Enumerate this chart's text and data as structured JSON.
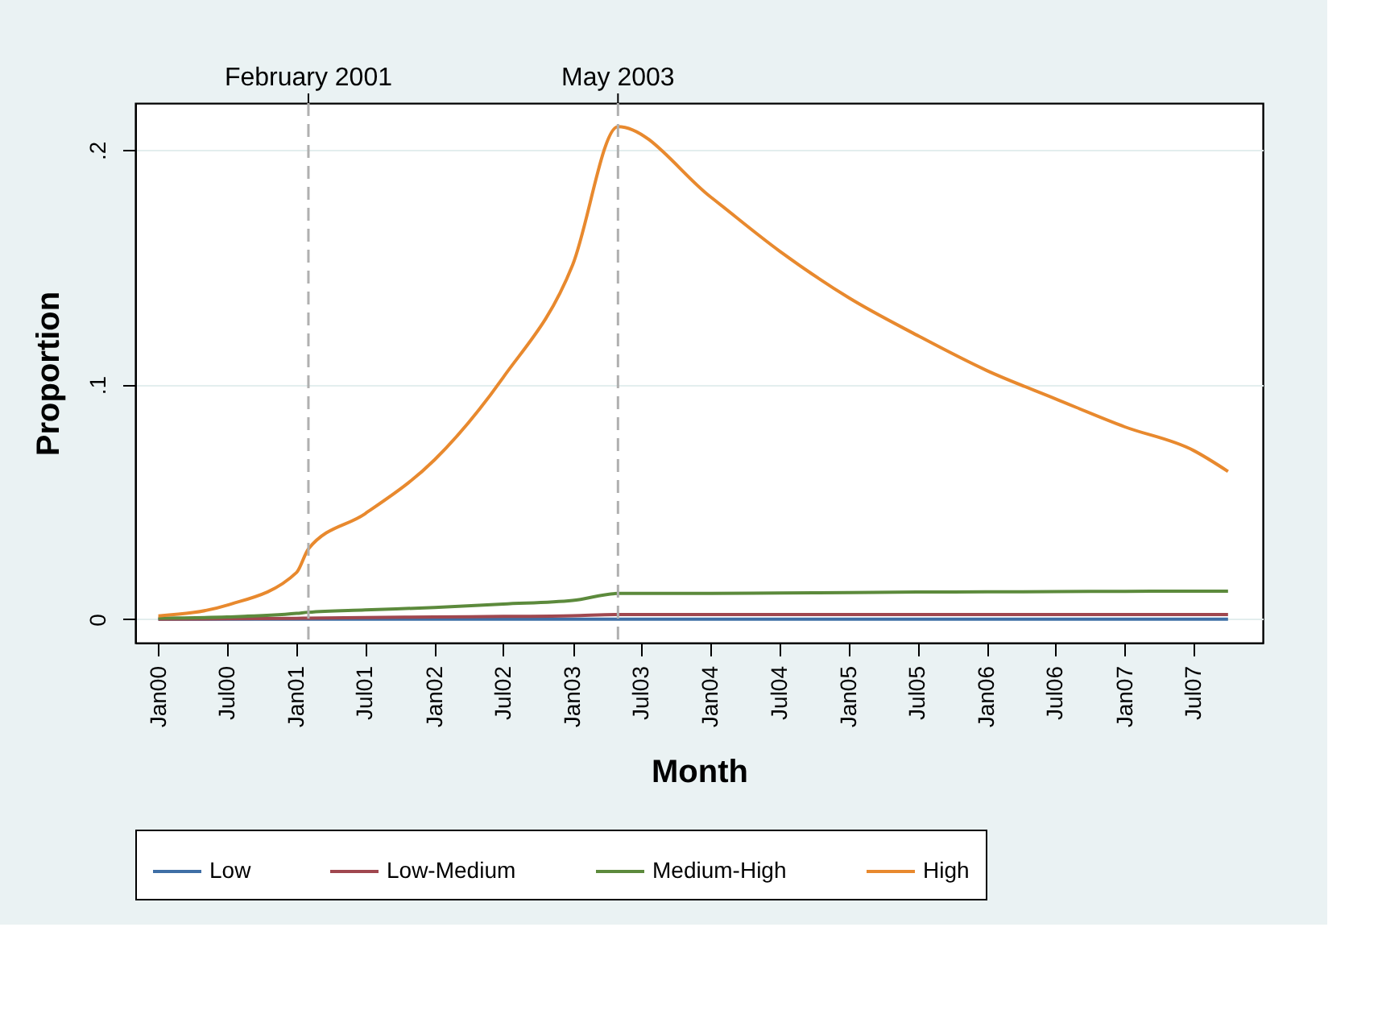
{
  "chart_data": {
    "type": "line",
    "xlabel": "Month",
    "ylabel": "Proportion",
    "xlim": [
      "1999-11",
      "2008-01"
    ],
    "ylim": [
      -0.01,
      0.22
    ],
    "xticks": [
      {
        "value": "2000-01",
        "label": "Jan00"
      },
      {
        "value": "2000-07",
        "label": "Jul00"
      },
      {
        "value": "2001-01",
        "label": "Jan01"
      },
      {
        "value": "2001-07",
        "label": "Jul01"
      },
      {
        "value": "2002-01",
        "label": "Jan02"
      },
      {
        "value": "2002-07",
        "label": "Jul02"
      },
      {
        "value": "2003-01",
        "label": "Jan03"
      },
      {
        "value": "2003-07",
        "label": "Jul03"
      },
      {
        "value": "2004-01",
        "label": "Jan04"
      },
      {
        "value": "2004-07",
        "label": "Jul04"
      },
      {
        "value": "2005-01",
        "label": "Jan05"
      },
      {
        "value": "2005-07",
        "label": "Jul05"
      },
      {
        "value": "2006-01",
        "label": "Jan06"
      },
      {
        "value": "2006-07",
        "label": "Jul06"
      },
      {
        "value": "2007-01",
        "label": "Jan07"
      },
      {
        "value": "2007-07",
        "label": "Jul07"
      }
    ],
    "yticks": [
      0,
      {
        "value": 0.1,
        "label": ".1"
      },
      {
        "value": 0.2,
        "label": ".2"
      }
    ],
    "grid": "y",
    "legend": "bottom",
    "ref_lines": [
      {
        "axis": "x",
        "value": "2001-02",
        "label": "February 2001",
        "color": "#b0b0b0",
        "line_style": "dashed"
      },
      {
        "axis": "x",
        "value": "2003-05",
        "label": "May 2003",
        "color": "#b0b0b0",
        "line_style": "dashed"
      }
    ],
    "x": [
      "2000-01",
      "2000-07",
      "2001-01",
      "2001-02",
      "2001-07",
      "2002-01",
      "2002-07",
      "2003-01",
      "2003-05",
      "2004-01",
      "2004-07",
      "2005-01",
      "2005-07",
      "2006-01",
      "2006-07",
      "2007-01",
      "2007-07",
      "2007-10"
    ],
    "series": [
      {
        "name": "Low",
        "color": "#3f6fa6",
        "values": [
          0,
          0,
          0,
          0,
          0,
          0,
          0,
          0,
          0,
          0,
          0,
          0,
          0,
          0,
          0,
          0,
          0,
          0
        ]
      },
      {
        "name": "Low-Medium",
        "color": "#a0474f",
        "values": [
          0,
          0.0002,
          0.0004,
          0.0005,
          0.0007,
          0.001,
          0.0012,
          0.0015,
          0.002,
          0.002,
          0.002,
          0.002,
          0.002,
          0.002,
          0.002,
          0.002,
          0.002,
          0.002
        ]
      },
      {
        "name": "Medium-High",
        "color": "#5c8a3c",
        "values": [
          0.0005,
          0.001,
          0.0025,
          0.003,
          0.004,
          0.005,
          0.0065,
          0.008,
          0.011,
          0.011,
          0.0112,
          0.0114,
          0.0116,
          0.0117,
          0.0118,
          0.0119,
          0.012,
          0.012
        ]
      },
      {
        "name": "High",
        "color": "#e8892e",
        "values": [
          0.0014,
          0.006,
          0.02,
          0.03,
          0.045,
          0.068,
          0.103,
          0.151,
          0.21,
          0.18,
          0.157,
          0.137,
          0.121,
          0.106,
          0.094,
          0.082,
          0.072,
          0.063
        ]
      }
    ]
  }
}
